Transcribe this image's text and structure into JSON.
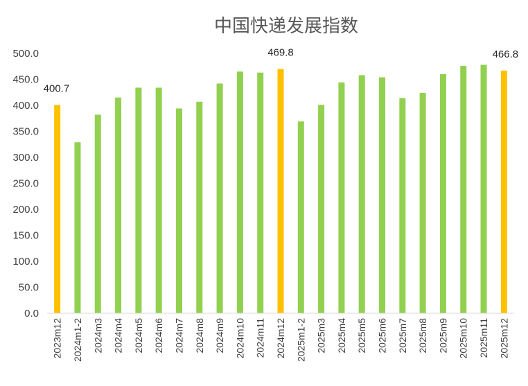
{
  "chart_data": {
    "type": "bar",
    "title": "中国快递发展指数",
    "categories": [
      "2023m12",
      "2024m1-2",
      "2024m3",
      "2024m4",
      "2024m5",
      "2024m6",
      "2024m7",
      "2024m8",
      "2024m9",
      "2024m10",
      "2024m11",
      "2024m12",
      "2025m1-2",
      "2025m3",
      "2025m4",
      "2025m5",
      "2025m6",
      "2025m7",
      "2025m8",
      "2025m9",
      "2025m10",
      "2025m11",
      "2025m12"
    ],
    "values": [
      400.7,
      329.0,
      382.0,
      415.0,
      434.0,
      434.0,
      394.0,
      407.0,
      442.0,
      465.0,
      463.0,
      469.8,
      369.0,
      401.0,
      444.0,
      458.0,
      454.0,
      414.0,
      424.0,
      460.0,
      476.0,
      478.0,
      466.8
    ],
    "highlight_categories": [
      "2023m12",
      "2024m12",
      "2025m12"
    ],
    "data_labels": [
      {
        "category": "2023m12",
        "text": "400.7"
      },
      {
        "category": "2024m12",
        "text": "469.8"
      },
      {
        "category": "2025m12",
        "text": "466.8"
      }
    ],
    "ylim": [
      0,
      500
    ],
    "y_ticks": [
      "0.0",
      "50.0",
      "100.0",
      "150.0",
      "200.0",
      "250.0",
      "300.0",
      "350.0",
      "400.0",
      "450.0",
      "500.0"
    ],
    "xlabel": "",
    "ylabel": "",
    "grid": false,
    "legend": "none",
    "colors": {
      "normal": "#92D050",
      "highlight": "#FFC000",
      "axis": "#D9D9D9"
    }
  }
}
